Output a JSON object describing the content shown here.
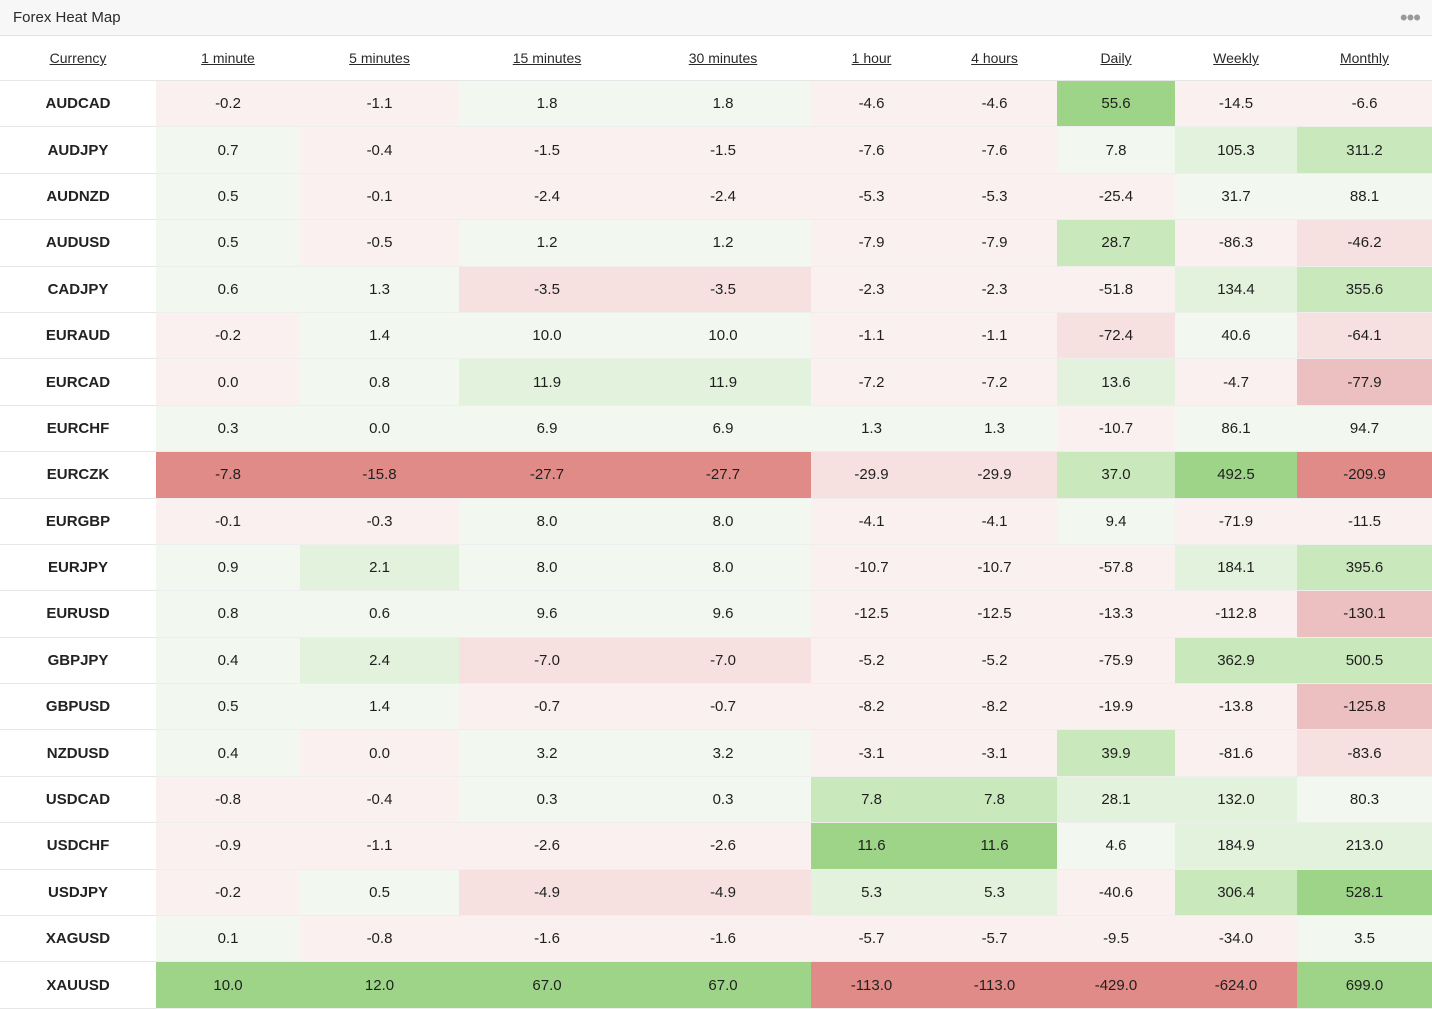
{
  "widget": {
    "title": "Forex Heat Map",
    "menu_icon": "more-horizontal-icon"
  },
  "columns": [
    "Currency",
    "1 minute",
    "5 minutes",
    "15 minutes",
    "30 minutes",
    "1 hour",
    "4 hours",
    "Daily",
    "Weekly",
    "Monthly"
  ],
  "colors": {
    "pos_light": "#f2f8ef",
    "pos_mid": "#e3f2dc",
    "pos_strong": "#c9e8bc",
    "pos_max": "#9ed488",
    "neg_light": "#fbf0f0",
    "neg_mid": "#f6e0e0",
    "neg_strong": "#ecc0c0",
    "neg_max": "#e08b87"
  },
  "rows": [
    {
      "pair": "AUDCAD",
      "values": [
        "-0.2",
        "-1.1",
        "1.8",
        "1.8",
        "-4.6",
        "-4.6",
        "55.6",
        "-14.5",
        "-6.6"
      ],
      "levels": [
        -1,
        -1,
        1,
        1,
        -1,
        -1,
        4,
        -1,
        -1
      ]
    },
    {
      "pair": "AUDJPY",
      "values": [
        "0.7",
        "-0.4",
        "-1.5",
        "-1.5",
        "-7.6",
        "-7.6",
        "7.8",
        "105.3",
        "311.2"
      ],
      "levels": [
        1,
        -1,
        -1,
        -1,
        -1,
        -1,
        1,
        2,
        3
      ]
    },
    {
      "pair": "AUDNZD",
      "values": [
        "0.5",
        "-0.1",
        "-2.4",
        "-2.4",
        "-5.3",
        "-5.3",
        "-25.4",
        "31.7",
        "88.1"
      ],
      "levels": [
        1,
        -1,
        -1,
        -1,
        -1,
        -1,
        -1,
        1,
        1
      ]
    },
    {
      "pair": "AUDUSD",
      "values": [
        "0.5",
        "-0.5",
        "1.2",
        "1.2",
        "-7.9",
        "-7.9",
        "28.7",
        "-86.3",
        "-46.2"
      ],
      "levels": [
        1,
        -1,
        1,
        1,
        -1,
        -1,
        3,
        -1,
        -2
      ]
    },
    {
      "pair": "CADJPY",
      "values": [
        "0.6",
        "1.3",
        "-3.5",
        "-3.5",
        "-2.3",
        "-2.3",
        "-51.8",
        "134.4",
        "355.6"
      ],
      "levels": [
        1,
        1,
        -2,
        -2,
        -1,
        -1,
        -1,
        2,
        3
      ]
    },
    {
      "pair": "EURAUD",
      "values": [
        "-0.2",
        "1.4",
        "10.0",
        "10.0",
        "-1.1",
        "-1.1",
        "-72.4",
        "40.6",
        "-64.1"
      ],
      "levels": [
        -1,
        1,
        1,
        1,
        -1,
        -1,
        -2,
        1,
        -2
      ]
    },
    {
      "pair": "EURCAD",
      "values": [
        "0.0",
        "0.8",
        "11.9",
        "11.9",
        "-7.2",
        "-7.2",
        "13.6",
        "-4.7",
        "-77.9"
      ],
      "levels": [
        -1,
        1,
        2,
        2,
        -1,
        -1,
        2,
        -1,
        -3
      ]
    },
    {
      "pair": "EURCHF",
      "values": [
        "0.3",
        "0.0",
        "6.9",
        "6.9",
        "1.3",
        "1.3",
        "-10.7",
        "86.1",
        "94.7"
      ],
      "levels": [
        1,
        1,
        1,
        1,
        1,
        1,
        -1,
        1,
        1
      ]
    },
    {
      "pair": "EURCZK",
      "values": [
        "-7.8",
        "-15.8",
        "-27.7",
        "-27.7",
        "-29.9",
        "-29.9",
        "37.0",
        "492.5",
        "-209.9"
      ],
      "levels": [
        -4,
        -4,
        -4,
        -4,
        -2,
        -2,
        3,
        4,
        -4
      ]
    },
    {
      "pair": "EURGBP",
      "values": [
        "-0.1",
        "-0.3",
        "8.0",
        "8.0",
        "-4.1",
        "-4.1",
        "9.4",
        "-71.9",
        "-11.5"
      ],
      "levels": [
        -1,
        -1,
        1,
        1,
        -1,
        -1,
        1,
        -1,
        -1
      ]
    },
    {
      "pair": "EURJPY",
      "values": [
        "0.9",
        "2.1",
        "8.0",
        "8.0",
        "-10.7",
        "-10.7",
        "-57.8",
        "184.1",
        "395.6"
      ],
      "levels": [
        1,
        2,
        1,
        1,
        -1,
        -1,
        -1,
        2,
        3
      ]
    },
    {
      "pair": "EURUSD",
      "values": [
        "0.8",
        "0.6",
        "9.6",
        "9.6",
        "-12.5",
        "-12.5",
        "-13.3",
        "-112.8",
        "-130.1"
      ],
      "levels": [
        1,
        1,
        1,
        1,
        -1,
        -1,
        -1,
        -1,
        -3
      ]
    },
    {
      "pair": "GBPJPY",
      "values": [
        "0.4",
        "2.4",
        "-7.0",
        "-7.0",
        "-5.2",
        "-5.2",
        "-75.9",
        "362.9",
        "500.5"
      ],
      "levels": [
        1,
        2,
        -2,
        -2,
        -1,
        -1,
        -1,
        3,
        3
      ]
    },
    {
      "pair": "GBPUSD",
      "values": [
        "0.5",
        "1.4",
        "-0.7",
        "-0.7",
        "-8.2",
        "-8.2",
        "-19.9",
        "-13.8",
        "-125.8"
      ],
      "levels": [
        1,
        1,
        -1,
        -1,
        -1,
        -1,
        -1,
        -1,
        -3
      ]
    },
    {
      "pair": "NZDUSD",
      "values": [
        "0.4",
        "0.0",
        "3.2",
        "3.2",
        "-3.1",
        "-3.1",
        "39.9",
        "-81.6",
        "-83.6"
      ],
      "levels": [
        1,
        -1,
        1,
        1,
        -1,
        -1,
        3,
        -1,
        -2
      ]
    },
    {
      "pair": "USDCAD",
      "values": [
        "-0.8",
        "-0.4",
        "0.3",
        "0.3",
        "7.8",
        "7.8",
        "28.1",
        "132.0",
        "80.3"
      ],
      "levels": [
        -1,
        -1,
        1,
        1,
        3,
        3,
        2,
        2,
        1
      ]
    },
    {
      "pair": "USDCHF",
      "values": [
        "-0.9",
        "-1.1",
        "-2.6",
        "-2.6",
        "11.6",
        "11.6",
        "4.6",
        "184.9",
        "213.0"
      ],
      "levels": [
        -1,
        -1,
        -1,
        -1,
        4,
        4,
        1,
        2,
        2
      ]
    },
    {
      "pair": "USDJPY",
      "values": [
        "-0.2",
        "0.5",
        "-4.9",
        "-4.9",
        "5.3",
        "5.3",
        "-40.6",
        "306.4",
        "528.1"
      ],
      "levels": [
        -1,
        1,
        -2,
        -2,
        2,
        2,
        -1,
        3,
        4
      ]
    },
    {
      "pair": "XAGUSD",
      "values": [
        "0.1",
        "-0.8",
        "-1.6",
        "-1.6",
        "-5.7",
        "-5.7",
        "-9.5",
        "-34.0",
        "3.5"
      ],
      "levels": [
        1,
        -1,
        -1,
        -1,
        -1,
        -1,
        -1,
        -1,
        1
      ]
    },
    {
      "pair": "XAUUSD",
      "values": [
        "10.0",
        "12.0",
        "67.0",
        "67.0",
        "-113.0",
        "-113.0",
        "-429.0",
        "-624.0",
        "699.0"
      ],
      "levels": [
        4,
        4,
        4,
        4,
        -4,
        -4,
        -4,
        -4,
        4
      ]
    }
  ]
}
